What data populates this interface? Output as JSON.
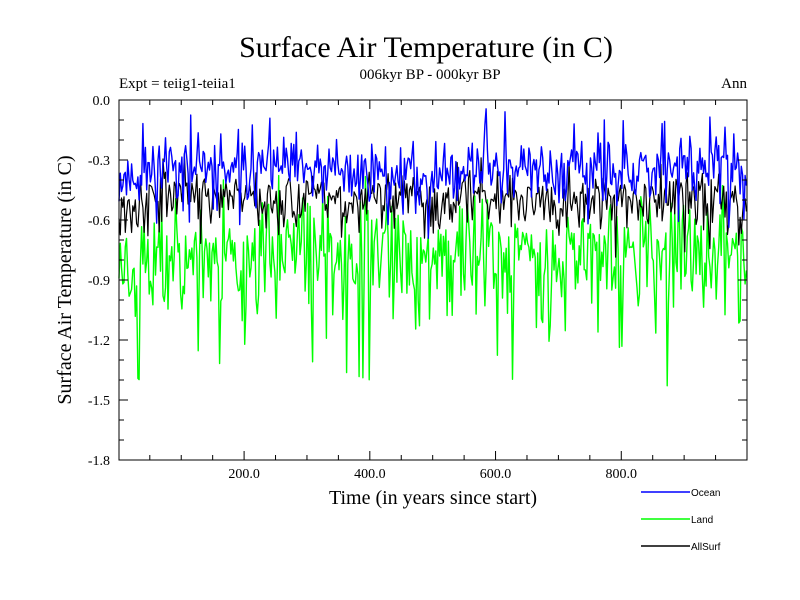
{
  "chart_data": {
    "type": "line",
    "title": "Surface Air Temperature (in C)",
    "subtitle": "006kyr BP - 000kyr BP",
    "left_label": "Expt = teiig1-teiia1",
    "right_label": "Ann",
    "xlabel": "Time (in years since start)",
    "ylabel": "Surface Air Temperature (in C)",
    "xlim": [
      1,
      1000
    ],
    "ylim": [
      -1.8,
      0.0
    ],
    "x_ticks": [
      200,
      400,
      600,
      800
    ],
    "x_tick_labels": [
      "200.0",
      "400.0",
      "600.0",
      "800.0"
    ],
    "y_ticks": [
      0.0,
      -0.3,
      -0.6,
      -0.9,
      -1.2,
      -1.5,
      -1.8
    ],
    "y_tick_labels": [
      "0.0",
      "-0.3",
      "-0.6",
      "-0.9",
      "-1.2",
      "-1.5",
      "-1.8"
    ],
    "grid": false,
    "legend_position": "bottom-right",
    "series": [
      {
        "name": "Ocean",
        "color": "#0000ff",
        "x": [
          1,
          50,
          100,
          150,
          200,
          250,
          300,
          350,
          400,
          450,
          500,
          550,
          600,
          650,
          700,
          750,
          800,
          850,
          900,
          950,
          1000
        ],
        "mean": [
          -0.38,
          -0.36,
          -0.3,
          -0.37,
          -0.36,
          -0.33,
          -0.35,
          -0.38,
          -0.34,
          -0.36,
          -0.39,
          -0.34,
          -0.32,
          -0.36,
          -0.35,
          -0.35,
          -0.38,
          -0.37,
          -0.33,
          -0.35,
          -0.38
        ],
        "max": [
          -0.25,
          -0.08,
          0.0,
          -0.18,
          -0.14,
          -0.08,
          -0.17,
          -0.2,
          -0.14,
          -0.15,
          -0.22,
          -0.1,
          -0.02,
          -0.15,
          -0.14,
          -0.1,
          -0.1,
          -0.16,
          -0.02,
          -0.1,
          -0.22
        ],
        "min": [
          -0.68,
          -0.66,
          -0.6,
          -0.64,
          -0.62,
          -0.6,
          -0.62,
          -0.63,
          -0.6,
          -0.64,
          -0.7,
          -0.6,
          -0.6,
          -0.62,
          -0.6,
          -0.62,
          -0.68,
          -0.64,
          -0.6,
          -0.62,
          -0.66
        ]
      },
      {
        "name": "Land",
        "color": "#00ff00",
        "x": [
          1,
          50,
          100,
          150,
          200,
          250,
          300,
          350,
          400,
          450,
          500,
          550,
          600,
          650,
          700,
          750,
          800,
          850,
          900,
          950,
          1000
        ],
        "mean": [
          -0.78,
          -0.8,
          -0.72,
          -0.78,
          -0.78,
          -0.75,
          -0.74,
          -0.8,
          -0.76,
          -0.77,
          -0.8,
          -0.74,
          -0.75,
          -0.76,
          -0.76,
          -0.75,
          -0.8,
          -0.77,
          -0.72,
          -0.76,
          -0.78
        ],
        "max": [
          -0.45,
          -0.42,
          -0.3,
          -0.4,
          -0.4,
          -0.38,
          -0.36,
          -0.4,
          -0.38,
          -0.4,
          -0.42,
          -0.36,
          -0.3,
          -0.4,
          -0.38,
          -0.38,
          -0.4,
          -0.4,
          -0.3,
          -0.38,
          -0.42
        ],
        "min": [
          -1.3,
          -1.45,
          -1.2,
          -1.3,
          -1.38,
          -1.2,
          -1.3,
          -1.35,
          -1.4,
          -1.3,
          -1.3,
          -1.25,
          -1.51,
          -1.3,
          -1.3,
          -1.3,
          -1.38,
          -1.3,
          -1.58,
          -1.3,
          -1.05
        ]
      },
      {
        "name": "AllSurf",
        "color": "#000000",
        "x": [
          1,
          50,
          100,
          150,
          200,
          250,
          300,
          350,
          400,
          450,
          500,
          550,
          600,
          650,
          700,
          750,
          800,
          850,
          900,
          950,
          1000
        ],
        "mean": [
          -0.5,
          -0.5,
          -0.44,
          -0.49,
          -0.49,
          -0.47,
          -0.48,
          -0.5,
          -0.47,
          -0.48,
          -0.52,
          -0.47,
          -0.47,
          -0.48,
          -0.48,
          -0.47,
          -0.5,
          -0.49,
          -0.45,
          -0.48,
          -0.5
        ],
        "max": [
          -0.38,
          -0.32,
          -0.26,
          -0.34,
          -0.34,
          -0.3,
          -0.32,
          -0.35,
          -0.32,
          -0.33,
          -0.36,
          -0.3,
          -0.28,
          -0.33,
          -0.32,
          -0.32,
          -0.34,
          -0.34,
          -0.27,
          -0.32,
          -0.36
        ],
        "min": [
          -0.8,
          -0.75,
          -0.68,
          -0.74,
          -0.76,
          -0.72,
          -0.74,
          -0.76,
          -0.72,
          -0.76,
          -0.8,
          -0.72,
          -0.72,
          -0.74,
          -0.74,
          -0.72,
          -0.8,
          -0.74,
          -0.76,
          -0.74,
          -0.72
        ]
      }
    ]
  }
}
